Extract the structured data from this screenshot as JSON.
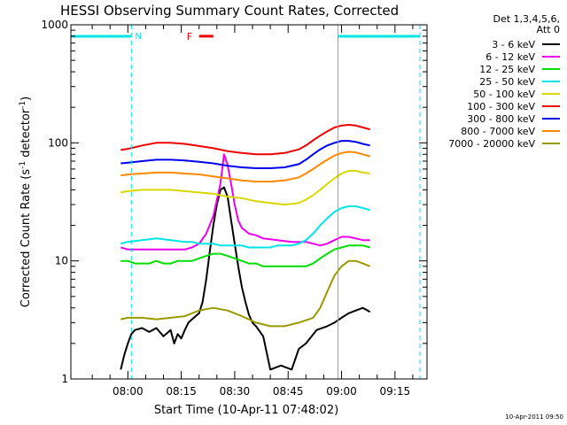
{
  "chart_data": {
    "type": "line",
    "title": "HESSI Observing Summary Count Rates, Corrected",
    "xlabel": "Start Time (10-Apr-11 07:48:02)",
    "ylabel_main": "Corrected Count Rate (s",
    "ylabel_sup": "-1",
    "ylabel_tail": " detector",
    "ylabel_end": ")",
    "yscale": "log",
    "ylim": [
      1,
      1000
    ],
    "y_ticks": [
      {
        "value": 1,
        "label": "1"
      },
      {
        "value": 10,
        "label": "10"
      },
      {
        "value": 100,
        "label": "100"
      },
      {
        "value": 1000,
        "label": "1000"
      }
    ],
    "xlim_minutes": [
      -4,
      96
    ],
    "x_ticks": [
      {
        "minute": 12,
        "label": "08:00"
      },
      {
        "minute": 27,
        "label": "08:15"
      },
      {
        "minute": 42,
        "label": "08:30"
      },
      {
        "minute": 57,
        "label": "08:45"
      },
      {
        "minute": 72,
        "label": "09:00"
      },
      {
        "minute": 87,
        "label": "09:15"
      }
    ],
    "timestamp": "10-Apr-2011 09:50",
    "legend": {
      "header_line1": "Det 1,3,4,5,6,",
      "header_line2": "Att 0",
      "placement": "top-right outside",
      "entries": [
        {
          "label": "3 - 6 keV",
          "color": "#000000"
        },
        {
          "label": "6 - 12 keV",
          "color": "#ee00ee"
        },
        {
          "label": "12 - 25 keV",
          "color": "#00dd00"
        },
        {
          "label": "25 - 50 keV",
          "color": "#00e5e5"
        },
        {
          "label": "50 - 100 keV",
          "color": "#d8d800"
        },
        {
          "label": "100 - 300 keV",
          "color": "#ee0000"
        },
        {
          "label": "300 - 800 keV",
          "color": "#0000ee"
        },
        {
          "label": "800 - 7000 keV",
          "color": "#ff8800"
        },
        {
          "label": "7000 - 20000 keV",
          "color": "#999900"
        }
      ]
    },
    "orbit_annotations": {
      "night_color": "#00e5e5",
      "night_label": "N",
      "night_segments": [
        [
          -4,
          13
        ],
        [
          71,
          94
        ]
      ],
      "night_dashes": [
        13,
        94
      ],
      "night_solid_line": 71,
      "flare_color": "#ee0000",
      "flare_label": "F",
      "flare_segment": [
        32,
        36
      ],
      "flare_level": 800
    },
    "series": [
      {
        "name": "3 - 6 keV",
        "color": "#000000",
        "x": [
          10,
          11,
          12,
          13,
          14,
          16,
          18,
          20,
          22,
          24,
          25,
          26,
          27,
          28,
          29,
          30,
          31,
          32,
          33,
          34,
          35,
          36,
          37,
          38,
          39,
          40,
          41,
          42,
          43,
          44,
          45,
          46,
          47,
          48,
          50,
          52,
          55,
          58,
          60,
          62,
          65,
          68,
          70,
          72,
          74,
          76,
          78,
          80
        ],
        "y": [
          1.2,
          1.6,
          2.0,
          2.4,
          2.6,
          2.7,
          2.5,
          2.7,
          2.3,
          2.6,
          2.0,
          2.4,
          2.2,
          2.6,
          3.0,
          3.2,
          3.4,
          3.6,
          4.5,
          7.0,
          12,
          20,
          30,
          40,
          42,
          35,
          22,
          14,
          9,
          6,
          4.5,
          3.5,
          3.0,
          2.8,
          2.3,
          1.2,
          1.3,
          1.2,
          1.8,
          2.0,
          2.6,
          2.8,
          3.0,
          3.3,
          3.6,
          3.8,
          4.0,
          3.7
        ]
      },
      {
        "name": "6 - 12 keV",
        "color": "#ee00ee",
        "x": [
          10,
          12,
          16,
          20,
          24,
          28,
          30,
          32,
          34,
          36,
          38,
          39,
          40,
          41,
          42,
          43,
          44,
          45,
          46,
          48,
          50,
          54,
          58,
          62,
          64,
          66,
          68,
          70,
          72,
          74,
          76,
          78,
          80
        ],
        "y": [
          13,
          12.5,
          12.5,
          12.5,
          12.5,
          12.5,
          13,
          14,
          17,
          24,
          45,
          80,
          65,
          45,
          30,
          22,
          19,
          18,
          17,
          16.5,
          15.5,
          15,
          14.5,
          14.5,
          14,
          13.5,
          14,
          15,
          16,
          16,
          15.5,
          15,
          15
        ]
      },
      {
        "name": "12 - 25 keV",
        "color": "#00dd00",
        "x": [
          10,
          12,
          14,
          16,
          18,
          20,
          22,
          24,
          26,
          28,
          30,
          32,
          34,
          36,
          38,
          40,
          42,
          44,
          46,
          48,
          50,
          52,
          54,
          56,
          58,
          60,
          62,
          64,
          66,
          68,
          70,
          72,
          74,
          76,
          78,
          80
        ],
        "y": [
          10,
          10,
          9.5,
          9.5,
          9.5,
          10,
          9.5,
          9.5,
          10,
          10,
          10,
          10.5,
          11,
          11.5,
          11.5,
          11,
          10.5,
          10,
          9.5,
          9.5,
          9,
          9,
          9,
          9,
          9,
          9,
          9,
          9.5,
          10.5,
          11.5,
          12.5,
          13,
          13.5,
          13.5,
          13.5,
          13
        ]
      },
      {
        "name": "25 - 50 keV",
        "color": "#00e5e5",
        "x": [
          10,
          12,
          16,
          20,
          24,
          28,
          30,
          32,
          34,
          36,
          38,
          40,
          42,
          44,
          46,
          48,
          50,
          52,
          54,
          56,
          58,
          60,
          62,
          64,
          66,
          68,
          70,
          72,
          74,
          76,
          78,
          80
        ],
        "y": [
          14,
          14.5,
          15,
          15.5,
          15,
          14.5,
          14.5,
          14,
          14,
          14,
          13.5,
          13.5,
          13.5,
          13.5,
          13,
          13,
          13,
          13,
          13.5,
          13.5,
          13.5,
          14,
          15,
          17,
          20,
          23,
          26,
          28,
          29,
          29,
          28,
          27
        ]
      },
      {
        "name": "50 - 100 keV",
        "color": "#d8d800",
        "x": [
          10,
          12,
          16,
          20,
          24,
          28,
          32,
          36,
          40,
          44,
          48,
          52,
          56,
          60,
          62,
          64,
          66,
          68,
          70,
          72,
          74,
          76,
          78,
          80
        ],
        "y": [
          38,
          39,
          40,
          40,
          40,
          39,
          38,
          37,
          35,
          34,
          32,
          31,
          30,
          31,
          33,
          36,
          40,
          45,
          50,
          55,
          58,
          58,
          56,
          55
        ]
      },
      {
        "name": "100 - 300 keV",
        "color": "#ee0000",
        "x": [
          10,
          12,
          16,
          20,
          24,
          28,
          32,
          36,
          40,
          44,
          48,
          52,
          56,
          60,
          62,
          64,
          66,
          68,
          70,
          72,
          74,
          76,
          78,
          80
        ],
        "y": [
          87,
          89,
          95,
          100,
          100,
          98,
          94,
          90,
          85,
          82,
          80,
          80,
          82,
          88,
          95,
          105,
          115,
          125,
          135,
          140,
          142,
          140,
          135,
          130
        ]
      },
      {
        "name": "300 - 800 keV",
        "color": "#0000ee",
        "x": [
          10,
          12,
          16,
          20,
          24,
          28,
          32,
          36,
          40,
          44,
          48,
          52,
          56,
          60,
          62,
          64,
          66,
          68,
          70,
          72,
          74,
          76,
          78,
          80
        ],
        "y": [
          67,
          68,
          70,
          72,
          72,
          71,
          69,
          67,
          64,
          62,
          61,
          61,
          62,
          66,
          72,
          80,
          88,
          95,
          100,
          104,
          104,
          102,
          98,
          95
        ]
      },
      {
        "name": "800 - 7000 keV",
        "color": "#ff8800",
        "x": [
          10,
          12,
          16,
          20,
          24,
          28,
          32,
          36,
          40,
          44,
          48,
          52,
          56,
          60,
          62,
          64,
          66,
          68,
          70,
          72,
          74,
          76,
          78,
          80
        ],
        "y": [
          53,
          54,
          55,
          56,
          56,
          55,
          54,
          52,
          50,
          48,
          47,
          47,
          48,
          51,
          55,
          60,
          66,
          72,
          78,
          82,
          84,
          83,
          80,
          77
        ]
      },
      {
        "name": "7000 - 20000 keV",
        "color": "#999900",
        "x": [
          10,
          12,
          16,
          20,
          24,
          28,
          32,
          36,
          40,
          44,
          48,
          52,
          56,
          60,
          64,
          66,
          68,
          70,
          72,
          74,
          76,
          78,
          80
        ],
        "y": [
          3.2,
          3.3,
          3.3,
          3.2,
          3.3,
          3.4,
          3.8,
          4.0,
          3.8,
          3.4,
          3.0,
          2.8,
          2.8,
          3.0,
          3.3,
          4.0,
          5.5,
          7.5,
          9.0,
          10.0,
          10.0,
          9.5,
          9.0
        ]
      }
    ]
  }
}
